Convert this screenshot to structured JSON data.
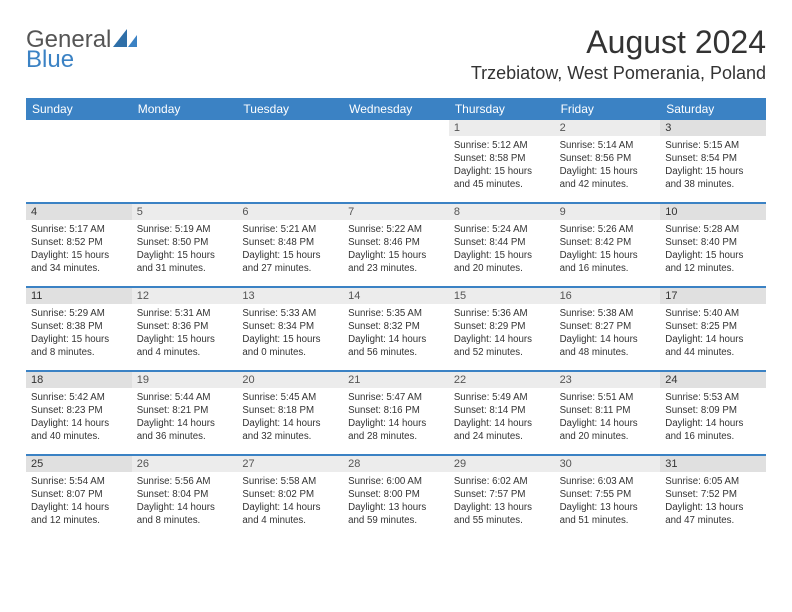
{
  "brand": {
    "word1": "General",
    "word2": "Blue"
  },
  "title": "August 2024",
  "location": "Trzebiatow, West Pomerania, Poland",
  "colors": {
    "header_bg": "#3b82c4",
    "header_text": "#ffffff",
    "daynum_bg": "#ececec",
    "daynum_weekend_bg": "#e0e0e0",
    "border": "#3b82c4",
    "text": "#333333",
    "brand_gray": "#555555",
    "brand_blue": "#3b82c4",
    "page_bg": "#ffffff"
  },
  "fonts": {
    "family": "Arial",
    "title_size_pt": 24,
    "location_size_pt": 14,
    "header_size_pt": 9,
    "body_size_pt": 7.5
  },
  "day_labels": [
    "Sunday",
    "Monday",
    "Tuesday",
    "Wednesday",
    "Thursday",
    "Friday",
    "Saturday"
  ],
  "weeks": [
    [
      {
        "n": "",
        "sunrise": "",
        "sunset": "",
        "daylight": ""
      },
      {
        "n": "",
        "sunrise": "",
        "sunset": "",
        "daylight": ""
      },
      {
        "n": "",
        "sunrise": "",
        "sunset": "",
        "daylight": ""
      },
      {
        "n": "",
        "sunrise": "",
        "sunset": "",
        "daylight": ""
      },
      {
        "n": "1",
        "sunrise": "Sunrise: 5:12 AM",
        "sunset": "Sunset: 8:58 PM",
        "daylight": "Daylight: 15 hours and 45 minutes."
      },
      {
        "n": "2",
        "sunrise": "Sunrise: 5:14 AM",
        "sunset": "Sunset: 8:56 PM",
        "daylight": "Daylight: 15 hours and 42 minutes."
      },
      {
        "n": "3",
        "sunrise": "Sunrise: 5:15 AM",
        "sunset": "Sunset: 8:54 PM",
        "daylight": "Daylight: 15 hours and 38 minutes."
      }
    ],
    [
      {
        "n": "4",
        "sunrise": "Sunrise: 5:17 AM",
        "sunset": "Sunset: 8:52 PM",
        "daylight": "Daylight: 15 hours and 34 minutes."
      },
      {
        "n": "5",
        "sunrise": "Sunrise: 5:19 AM",
        "sunset": "Sunset: 8:50 PM",
        "daylight": "Daylight: 15 hours and 31 minutes."
      },
      {
        "n": "6",
        "sunrise": "Sunrise: 5:21 AM",
        "sunset": "Sunset: 8:48 PM",
        "daylight": "Daylight: 15 hours and 27 minutes."
      },
      {
        "n": "7",
        "sunrise": "Sunrise: 5:22 AM",
        "sunset": "Sunset: 8:46 PM",
        "daylight": "Daylight: 15 hours and 23 minutes."
      },
      {
        "n": "8",
        "sunrise": "Sunrise: 5:24 AM",
        "sunset": "Sunset: 8:44 PM",
        "daylight": "Daylight: 15 hours and 20 minutes."
      },
      {
        "n": "9",
        "sunrise": "Sunrise: 5:26 AM",
        "sunset": "Sunset: 8:42 PM",
        "daylight": "Daylight: 15 hours and 16 minutes."
      },
      {
        "n": "10",
        "sunrise": "Sunrise: 5:28 AM",
        "sunset": "Sunset: 8:40 PM",
        "daylight": "Daylight: 15 hours and 12 minutes."
      }
    ],
    [
      {
        "n": "11",
        "sunrise": "Sunrise: 5:29 AM",
        "sunset": "Sunset: 8:38 PM",
        "daylight": "Daylight: 15 hours and 8 minutes."
      },
      {
        "n": "12",
        "sunrise": "Sunrise: 5:31 AM",
        "sunset": "Sunset: 8:36 PM",
        "daylight": "Daylight: 15 hours and 4 minutes."
      },
      {
        "n": "13",
        "sunrise": "Sunrise: 5:33 AM",
        "sunset": "Sunset: 8:34 PM",
        "daylight": "Daylight: 15 hours and 0 minutes."
      },
      {
        "n": "14",
        "sunrise": "Sunrise: 5:35 AM",
        "sunset": "Sunset: 8:32 PM",
        "daylight": "Daylight: 14 hours and 56 minutes."
      },
      {
        "n": "15",
        "sunrise": "Sunrise: 5:36 AM",
        "sunset": "Sunset: 8:29 PM",
        "daylight": "Daylight: 14 hours and 52 minutes."
      },
      {
        "n": "16",
        "sunrise": "Sunrise: 5:38 AM",
        "sunset": "Sunset: 8:27 PM",
        "daylight": "Daylight: 14 hours and 48 minutes."
      },
      {
        "n": "17",
        "sunrise": "Sunrise: 5:40 AM",
        "sunset": "Sunset: 8:25 PM",
        "daylight": "Daylight: 14 hours and 44 minutes."
      }
    ],
    [
      {
        "n": "18",
        "sunrise": "Sunrise: 5:42 AM",
        "sunset": "Sunset: 8:23 PM",
        "daylight": "Daylight: 14 hours and 40 minutes."
      },
      {
        "n": "19",
        "sunrise": "Sunrise: 5:44 AM",
        "sunset": "Sunset: 8:21 PM",
        "daylight": "Daylight: 14 hours and 36 minutes."
      },
      {
        "n": "20",
        "sunrise": "Sunrise: 5:45 AM",
        "sunset": "Sunset: 8:18 PM",
        "daylight": "Daylight: 14 hours and 32 minutes."
      },
      {
        "n": "21",
        "sunrise": "Sunrise: 5:47 AM",
        "sunset": "Sunset: 8:16 PM",
        "daylight": "Daylight: 14 hours and 28 minutes."
      },
      {
        "n": "22",
        "sunrise": "Sunrise: 5:49 AM",
        "sunset": "Sunset: 8:14 PM",
        "daylight": "Daylight: 14 hours and 24 minutes."
      },
      {
        "n": "23",
        "sunrise": "Sunrise: 5:51 AM",
        "sunset": "Sunset: 8:11 PM",
        "daylight": "Daylight: 14 hours and 20 minutes."
      },
      {
        "n": "24",
        "sunrise": "Sunrise: 5:53 AM",
        "sunset": "Sunset: 8:09 PM",
        "daylight": "Daylight: 14 hours and 16 minutes."
      }
    ],
    [
      {
        "n": "25",
        "sunrise": "Sunrise: 5:54 AM",
        "sunset": "Sunset: 8:07 PM",
        "daylight": "Daylight: 14 hours and 12 minutes."
      },
      {
        "n": "26",
        "sunrise": "Sunrise: 5:56 AM",
        "sunset": "Sunset: 8:04 PM",
        "daylight": "Daylight: 14 hours and 8 minutes."
      },
      {
        "n": "27",
        "sunrise": "Sunrise: 5:58 AM",
        "sunset": "Sunset: 8:02 PM",
        "daylight": "Daylight: 14 hours and 4 minutes."
      },
      {
        "n": "28",
        "sunrise": "Sunrise: 6:00 AM",
        "sunset": "Sunset: 8:00 PM",
        "daylight": "Daylight: 13 hours and 59 minutes."
      },
      {
        "n": "29",
        "sunrise": "Sunrise: 6:02 AM",
        "sunset": "Sunset: 7:57 PM",
        "daylight": "Daylight: 13 hours and 55 minutes."
      },
      {
        "n": "30",
        "sunrise": "Sunrise: 6:03 AM",
        "sunset": "Sunset: 7:55 PM",
        "daylight": "Daylight: 13 hours and 51 minutes."
      },
      {
        "n": "31",
        "sunrise": "Sunrise: 6:05 AM",
        "sunset": "Sunset: 7:52 PM",
        "daylight": "Daylight: 13 hours and 47 minutes."
      }
    ]
  ]
}
